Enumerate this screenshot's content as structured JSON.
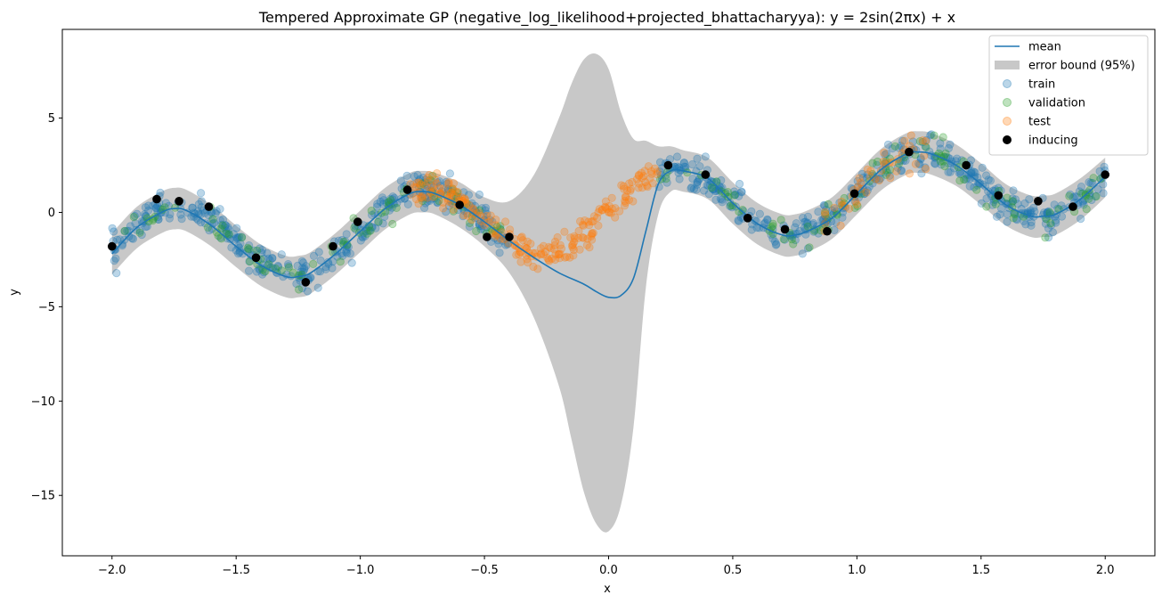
{
  "chart_data": {
    "type": "scatter",
    "title": "Tempered Approximate GP (negative_log_likelihood+projected_bhattacharyya): y = 2sin(2πx) + x",
    "xlabel": "x",
    "ylabel": "y",
    "xlim": [
      -2.2,
      2.2
    ],
    "ylim": [
      -18.2,
      9.7
    ],
    "xticks": [
      -2.0,
      -1.5,
      -1.0,
      -0.5,
      0.0,
      0.5,
      1.0,
      1.5,
      2.0
    ],
    "xtick_labels": [
      "−2.0",
      "−1.5",
      "−1.0",
      "−0.5",
      "0.0",
      "0.5",
      "1.0",
      "1.5",
      "2.0"
    ],
    "yticks": [
      5,
      0,
      -5,
      -10,
      -15
    ],
    "ytick_labels": [
      "5",
      "0",
      "−5",
      "−10",
      "−15"
    ],
    "grid": false,
    "legend_position": "top-right",
    "legend": [
      {
        "key": "mean",
        "label": "mean",
        "kind": "line",
        "color": "#1f77b4"
      },
      {
        "key": "band",
        "label": "error bound (95%)",
        "kind": "patch",
        "color": "#c8c8c8"
      },
      {
        "key": "train",
        "label": "train",
        "kind": "marker",
        "color": "#1f77b4",
        "alpha": 0.3
      },
      {
        "key": "validation",
        "label": "validation",
        "kind": "marker",
        "color": "#2ca02c",
        "alpha": 0.3
      },
      {
        "key": "test",
        "label": "test",
        "kind": "marker",
        "color": "#ff7f0e",
        "alpha": 0.3
      },
      {
        "key": "inducing",
        "label": "inducing",
        "kind": "marker",
        "color": "#000000",
        "alpha": 1.0
      }
    ],
    "mean": {
      "x": [
        -2.0,
        -1.9,
        -1.8,
        -1.75,
        -1.7,
        -1.6,
        -1.5,
        -1.4,
        -1.3,
        -1.25,
        -1.2,
        -1.1,
        -1.0,
        -0.9,
        -0.8,
        -0.75,
        -0.7,
        -0.6,
        -0.5,
        -0.4,
        -0.3,
        -0.2,
        -0.1,
        -0.05,
        0.0,
        0.05,
        0.1,
        0.15,
        0.2,
        0.25,
        0.3,
        0.4,
        0.5,
        0.6,
        0.7,
        0.75,
        0.8,
        0.9,
        1.0,
        1.1,
        1.2,
        1.25,
        1.3,
        1.4,
        1.5,
        1.6,
        1.7,
        1.75,
        1.8,
        1.9,
        2.0
      ],
      "y": [
        -2.2,
        -0.8,
        0.0,
        0.2,
        0.1,
        -0.7,
        -1.8,
        -2.8,
        -3.4,
        -3.4,
        -3.2,
        -2.2,
        -1.0,
        0.2,
        1.0,
        1.1,
        1.0,
        0.4,
        -0.5,
        -1.5,
        -2.4,
        -3.2,
        -3.8,
        -4.2,
        -4.5,
        -4.4,
        -3.5,
        -1.0,
        1.5,
        2.2,
        2.2,
        1.8,
        0.5,
        -0.6,
        -1.2,
        -1.2,
        -1.0,
        -0.3,
        1.0,
        2.3,
        3.1,
        3.2,
        3.1,
        2.5,
        1.5,
        0.4,
        -0.2,
        -0.2,
        -0.1,
        0.7,
        1.9
      ]
    },
    "band": {
      "x": [
        -2.0,
        -1.9,
        -1.8,
        -1.75,
        -1.7,
        -1.6,
        -1.5,
        -1.4,
        -1.3,
        -1.25,
        -1.2,
        -1.1,
        -1.0,
        -0.9,
        -0.8,
        -0.75,
        -0.7,
        -0.6,
        -0.5,
        -0.4,
        -0.3,
        -0.2,
        -0.15,
        -0.1,
        -0.05,
        0.0,
        0.05,
        0.1,
        0.15,
        0.2,
        0.25,
        0.3,
        0.4,
        0.5,
        0.6,
        0.7,
        0.75,
        0.8,
        0.9,
        1.0,
        1.1,
        1.2,
        1.25,
        1.3,
        1.4,
        1.5,
        1.6,
        1.7,
        1.75,
        1.8,
        1.9,
        2.0
      ],
      "upper": [
        -1.1,
        0.3,
        1.1,
        1.3,
        1.2,
        0.4,
        -0.7,
        -1.7,
        -2.3,
        -2.3,
        -2.1,
        -1.1,
        0.1,
        1.3,
        2.1,
        2.2,
        2.1,
        1.6,
        0.8,
        0.6,
        2.0,
        5.0,
        6.8,
        8.1,
        8.4,
        7.6,
        5.3,
        3.9,
        3.8,
        3.5,
        3.5,
        3.3,
        2.9,
        1.6,
        0.5,
        -0.1,
        -0.1,
        0.1,
        0.8,
        2.1,
        3.4,
        4.2,
        4.3,
        4.2,
        3.6,
        2.6,
        1.5,
        0.9,
        0.9,
        1.0,
        1.8,
        2.9
      ],
      "lower": [
        -3.3,
        -1.9,
        -1.1,
        -0.9,
        -1.0,
        -1.8,
        -2.9,
        -3.9,
        -4.5,
        -4.5,
        -4.3,
        -3.3,
        -2.1,
        -0.9,
        -0.1,
        0.0,
        -0.1,
        -0.8,
        -1.8,
        -3.2,
        -5.6,
        -9.2,
        -12.0,
        -14.8,
        -16.5,
        -16.9,
        -15.5,
        -11.4,
        -4.0,
        -0.1,
        1.1,
        1.1,
        0.7,
        -0.6,
        -1.7,
        -2.3,
        -2.3,
        -2.1,
        -1.4,
        -0.1,
        1.2,
        2.0,
        2.1,
        2.0,
        1.4,
        0.4,
        -0.7,
        -1.3,
        -1.3,
        -1.2,
        -0.4,
        0.8
      ]
    },
    "inducing": {
      "x": [
        -2.0,
        -1.82,
        -1.73,
        -1.61,
        -1.42,
        -1.22,
        -1.11,
        -1.01,
        -0.81,
        -0.6,
        -0.49,
        -0.4,
        0.24,
        0.39,
        0.56,
        0.71,
        0.88,
        0.99,
        1.21,
        1.44,
        1.57,
        1.73,
        1.87,
        2.0
      ],
      "y": [
        -1.8,
        0.7,
        0.6,
        0.3,
        -2.4,
        -3.7,
        -1.8,
        -0.5,
        1.2,
        0.4,
        -1.3,
        -1.3,
        2.5,
        2.0,
        -0.3,
        -0.9,
        -1.0,
        1.0,
        3.2,
        2.5,
        0.9,
        0.6,
        0.3,
        2.0
      ]
    }
  }
}
